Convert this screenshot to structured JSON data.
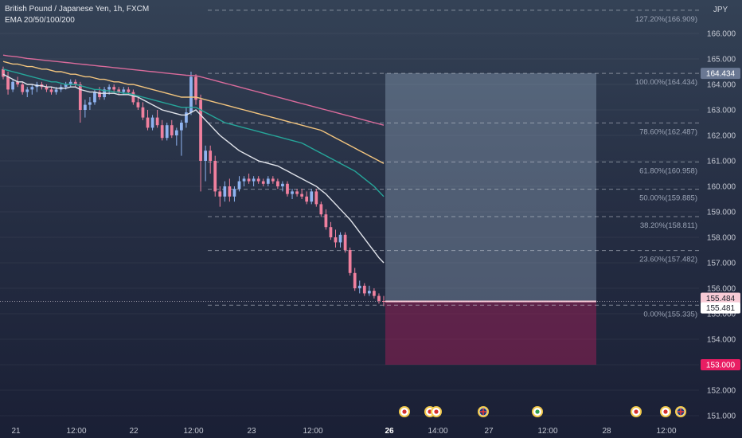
{
  "header": {
    "symbol": "British Pound / Japanese Yen, 1h, FXCM",
    "indicator": "EMA 20/50/100/200"
  },
  "chart_data": {
    "type": "candlestick",
    "currency": "JPY",
    "ylim": [
      150.8,
      167.6
    ],
    "y_ticks": [
      "151.000",
      "152.000",
      "153.000",
      "154.000",
      "155.000",
      "156.000",
      "157.000",
      "158.000",
      "159.000",
      "160.000",
      "161.000",
      "162.000",
      "163.000",
      "164.000",
      "165.000",
      "166.000"
    ],
    "x_ticks": [
      {
        "label": "21",
        "bold": false
      },
      {
        "label": "12:00",
        "bold": false
      },
      {
        "label": "22",
        "bold": false
      },
      {
        "label": "12:00",
        "bold": false
      },
      {
        "label": "23",
        "bold": false
      },
      {
        "label": "12:00",
        "bold": false
      },
      {
        "label": "26",
        "bold": true
      },
      {
        "label": "14:00",
        "bold": false
      },
      {
        "label": "27",
        "bold": false
      },
      {
        "label": "12:00",
        "bold": false
      },
      {
        "label": "28",
        "bold": false
      },
      {
        "label": "12:00",
        "bold": false
      }
    ],
    "fibonacci": [
      {
        "label": "127.20%(166.909)",
        "price": 166.909
      },
      {
        "label": "100.00%(164.434)",
        "price": 164.434
      },
      {
        "label": "78.60%(162.487)",
        "price": 162.487
      },
      {
        "label": "61.80%(160.958)",
        "price": 160.958
      },
      {
        "label": "50.00%(159.885)",
        "price": 159.885
      },
      {
        "label": "38.20%(158.811)",
        "price": 158.811
      },
      {
        "label": "23.60%(157.482)",
        "price": 157.482
      },
      {
        "label": "0.00%(155.335)",
        "price": 155.335
      }
    ],
    "position": {
      "entry": 155.484,
      "target": 164.434,
      "stop": 153.0
    },
    "price_labels": [
      {
        "text": "164.434",
        "price": 164.434,
        "bg": "#6a7893",
        "fg": "#ffffff"
      },
      {
        "text": "155.484",
        "price": 155.61,
        "bg": "#f8cbd6",
        "fg": "#1b1f2a"
      },
      {
        "text": "155.481",
        "price": 155.23,
        "bg": "#ffffff",
        "fg": "#1b1f2a"
      },
      {
        "text": "153.000",
        "price": 153.0,
        "bg": "#e91e63",
        "fg": "#ffffff"
      }
    ],
    "candles": [
      [
        164.6,
        164.7,
        164.2,
        164.3
      ],
      [
        164.3,
        164.5,
        163.6,
        163.8
      ],
      [
        163.8,
        164.2,
        163.7,
        164.1
      ],
      [
        164.1,
        164.3,
        163.9,
        164.0
      ],
      [
        164.0,
        164.1,
        163.6,
        163.7
      ],
      [
        163.7,
        163.9,
        163.5,
        163.8
      ],
      [
        163.8,
        164.0,
        163.6,
        163.9
      ],
      [
        163.9,
        164.1,
        163.7,
        164.0
      ],
      [
        164.0,
        164.1,
        163.8,
        163.9
      ],
      [
        163.9,
        164.0,
        163.7,
        163.8
      ],
      [
        163.8,
        163.9,
        163.6,
        163.7
      ],
      [
        163.7,
        163.9,
        163.6,
        163.8
      ],
      [
        163.8,
        164.0,
        163.7,
        163.9
      ],
      [
        163.9,
        164.1,
        163.8,
        164.0
      ],
      [
        164.0,
        164.2,
        163.9,
        164.1
      ],
      [
        164.1,
        164.2,
        163.9,
        164.0
      ],
      [
        164.0,
        164.1,
        162.5,
        163.0
      ],
      [
        163.0,
        163.4,
        162.7,
        163.2
      ],
      [
        163.2,
        163.5,
        163.0,
        163.3
      ],
      [
        163.3,
        163.8,
        163.2,
        163.7
      ],
      [
        163.7,
        163.9,
        163.4,
        163.5
      ],
      [
        163.5,
        163.9,
        163.4,
        163.8
      ],
      [
        163.8,
        164.0,
        163.6,
        163.9
      ],
      [
        163.9,
        164.0,
        163.7,
        163.8
      ],
      [
        163.8,
        163.9,
        163.6,
        163.7
      ],
      [
        163.7,
        163.9,
        163.6,
        163.8
      ],
      [
        163.8,
        163.9,
        163.6,
        163.7
      ],
      [
        163.7,
        163.8,
        163.2,
        163.3
      ],
      [
        163.3,
        163.5,
        163.0,
        163.1
      ],
      [
        163.1,
        163.3,
        162.6,
        162.7
      ],
      [
        162.7,
        163.0,
        162.2,
        162.3
      ],
      [
        162.3,
        162.8,
        162.2,
        162.7
      ],
      [
        162.7,
        163.0,
        162.3,
        162.4
      ],
      [
        162.4,
        162.6,
        161.8,
        161.9
      ],
      [
        161.9,
        162.5,
        161.8,
        162.4
      ],
      [
        162.4,
        162.6,
        161.9,
        162.0
      ],
      [
        162.0,
        162.3,
        161.6,
        162.2
      ],
      [
        162.2,
        162.6,
        161.2,
        162.5
      ],
      [
        162.5,
        163.1,
        162.3,
        162.9
      ],
      [
        162.9,
        164.5,
        162.8,
        164.3
      ],
      [
        164.3,
        164.4,
        163.2,
        163.4
      ],
      [
        163.4,
        163.6,
        159.8,
        161.0
      ],
      [
        161.0,
        161.6,
        160.2,
        161.4
      ],
      [
        161.4,
        161.6,
        160.5,
        161.0
      ],
      [
        161.0,
        161.2,
        159.6,
        159.8
      ],
      [
        159.8,
        160.0,
        159.2,
        159.6
      ],
      [
        159.6,
        160.2,
        159.4,
        160.0
      ],
      [
        160.0,
        160.3,
        159.4,
        159.6
      ],
      [
        159.6,
        160.0,
        159.4,
        159.9
      ],
      [
        159.9,
        160.4,
        159.8,
        160.2
      ],
      [
        160.2,
        160.4,
        160.0,
        160.3
      ],
      [
        160.3,
        160.5,
        160.1,
        160.2
      ],
      [
        160.2,
        160.4,
        160.0,
        160.3
      ],
      [
        160.3,
        160.4,
        160.1,
        160.2
      ],
      [
        160.2,
        160.3,
        160.0,
        160.1
      ],
      [
        160.1,
        160.4,
        160.0,
        160.3
      ],
      [
        160.3,
        160.4,
        160.1,
        160.2
      ],
      [
        160.2,
        160.3,
        159.9,
        160.0
      ],
      [
        160.0,
        160.2,
        159.8,
        160.1
      ],
      [
        160.1,
        160.2,
        159.6,
        159.7
      ],
      [
        159.7,
        159.9,
        159.5,
        159.8
      ],
      [
        159.8,
        159.9,
        159.6,
        159.7
      ],
      [
        159.7,
        159.9,
        159.5,
        159.6
      ],
      [
        159.6,
        159.8,
        159.3,
        159.4
      ],
      [
        159.4,
        159.9,
        159.3,
        159.8
      ],
      [
        159.8,
        159.9,
        159.2,
        159.3
      ],
      [
        159.3,
        159.4,
        158.8,
        158.9
      ],
      [
        158.9,
        159.1,
        158.3,
        158.4
      ],
      [
        158.4,
        158.6,
        157.9,
        158.0
      ],
      [
        158.0,
        158.3,
        157.6,
        157.8
      ],
      [
        157.8,
        158.2,
        157.6,
        158.1
      ],
      [
        158.1,
        158.2,
        157.4,
        157.5
      ],
      [
        157.5,
        157.6,
        156.5,
        156.6
      ],
      [
        156.6,
        156.8,
        155.9,
        156.0
      ],
      [
        156.0,
        156.3,
        155.8,
        156.1
      ],
      [
        156.1,
        156.2,
        155.7,
        155.8
      ],
      [
        155.8,
        156.1,
        155.7,
        155.9
      ],
      [
        155.9,
        156.0,
        155.6,
        155.7
      ],
      [
        155.7,
        155.8,
        155.4,
        155.5
      ],
      [
        155.5,
        155.7,
        155.3,
        155.48
      ]
    ],
    "ema_series": [
      {
        "color": "#e0e3ea",
        "values": [
          164.4,
          164.3,
          164.2,
          164.1,
          164.1,
          164.0,
          164.0,
          163.95,
          163.95,
          163.9,
          163.9,
          163.85,
          163.85,
          163.85,
          163.9,
          163.9,
          163.8,
          163.75,
          163.7,
          163.7,
          163.65,
          163.65,
          163.65,
          163.65,
          163.6,
          163.6,
          163.6,
          163.55,
          163.5,
          163.4,
          163.3,
          163.2,
          163.1,
          163.0,
          162.95,
          162.9,
          162.85,
          162.8,
          162.8,
          162.9,
          163.0,
          162.8,
          162.6,
          162.4,
          162.2,
          162.0,
          161.85,
          161.7,
          161.55,
          161.4,
          161.3,
          161.2,
          161.1,
          161.0,
          160.95,
          160.9,
          160.85,
          160.8,
          160.7,
          160.6,
          160.5,
          160.4,
          160.3,
          160.2,
          160.1,
          160.0,
          159.85,
          159.7,
          159.5,
          159.3,
          159.1,
          158.9,
          158.7,
          158.45,
          158.2,
          157.95,
          157.7,
          157.45,
          157.2,
          157.0
        ]
      },
      {
        "color": "#26a69a",
        "values": [
          164.6,
          164.55,
          164.5,
          164.45,
          164.4,
          164.35,
          164.3,
          164.25,
          164.2,
          164.15,
          164.1,
          164.1,
          164.05,
          164.0,
          164.0,
          164.0,
          163.95,
          163.9,
          163.85,
          163.8,
          163.8,
          163.75,
          163.75,
          163.7,
          163.7,
          163.65,
          163.65,
          163.6,
          163.55,
          163.5,
          163.45,
          163.4,
          163.35,
          163.3,
          163.25,
          163.2,
          163.15,
          163.1,
          163.1,
          163.1,
          163.1,
          163.0,
          162.9,
          162.8,
          162.7,
          162.6,
          162.5,
          162.45,
          162.4,
          162.35,
          162.3,
          162.25,
          162.2,
          162.15,
          162.1,
          162.05,
          162.0,
          161.95,
          161.9,
          161.85,
          161.8,
          161.75,
          161.7,
          161.6,
          161.5,
          161.4,
          161.3,
          161.2,
          161.1,
          161.0,
          160.9,
          160.8,
          160.7,
          160.6,
          160.45,
          160.3,
          160.15,
          160.0,
          159.8,
          159.6
        ]
      },
      {
        "color": "#f2c47e",
        "values": [
          164.9,
          164.85,
          164.8,
          164.8,
          164.75,
          164.7,
          164.7,
          164.65,
          164.6,
          164.6,
          164.55,
          164.5,
          164.5,
          164.45,
          164.4,
          164.4,
          164.35,
          164.3,
          164.3,
          164.25,
          164.2,
          164.2,
          164.15,
          164.1,
          164.1,
          164.05,
          164.0,
          164.0,
          163.95,
          163.9,
          163.85,
          163.8,
          163.75,
          163.7,
          163.65,
          163.6,
          163.55,
          163.5,
          163.5,
          163.5,
          163.5,
          163.45,
          163.4,
          163.35,
          163.3,
          163.25,
          163.2,
          163.15,
          163.1,
          163.05,
          163.0,
          162.95,
          162.9,
          162.85,
          162.8,
          162.75,
          162.7,
          162.65,
          162.6,
          162.55,
          162.5,
          162.45,
          162.4,
          162.35,
          162.3,
          162.25,
          162.2,
          162.1,
          162.0,
          161.9,
          161.8,
          161.7,
          161.6,
          161.5,
          161.4,
          161.3,
          161.2,
          161.1,
          161.0,
          160.9
        ]
      },
      {
        "color": "#d96b9b",
        "values": [
          165.15,
          165.12,
          165.1,
          165.08,
          165.05,
          165.02,
          165.0,
          164.98,
          164.96,
          164.94,
          164.92,
          164.9,
          164.88,
          164.86,
          164.84,
          164.82,
          164.8,
          164.78,
          164.76,
          164.74,
          164.72,
          164.7,
          164.68,
          164.66,
          164.64,
          164.62,
          164.6,
          164.58,
          164.56,
          164.54,
          164.52,
          164.5,
          164.48,
          164.46,
          164.44,
          164.42,
          164.4,
          164.38,
          164.36,
          164.35,
          164.34,
          164.3,
          164.25,
          164.2,
          164.15,
          164.1,
          164.05,
          164.0,
          163.95,
          163.9,
          163.85,
          163.8,
          163.75,
          163.7,
          163.65,
          163.6,
          163.55,
          163.5,
          163.45,
          163.4,
          163.35,
          163.3,
          163.25,
          163.2,
          163.15,
          163.1,
          163.05,
          163.0,
          162.95,
          162.9,
          162.85,
          162.8,
          162.75,
          162.7,
          162.65,
          162.6,
          162.55,
          162.5,
          162.45,
          162.4
        ]
      }
    ],
    "events": [
      {
        "x": 508,
        "kind": "red"
      },
      {
        "x": 540,
        "kind": "red"
      },
      {
        "x": 548,
        "kind": "red"
      },
      {
        "x": 607,
        "kind": "flag"
      },
      {
        "x": 675,
        "kind": "green"
      },
      {
        "x": 799,
        "kind": "red"
      },
      {
        "x": 836,
        "kind": "red"
      },
      {
        "x": 855,
        "kind": "flag"
      }
    ]
  }
}
